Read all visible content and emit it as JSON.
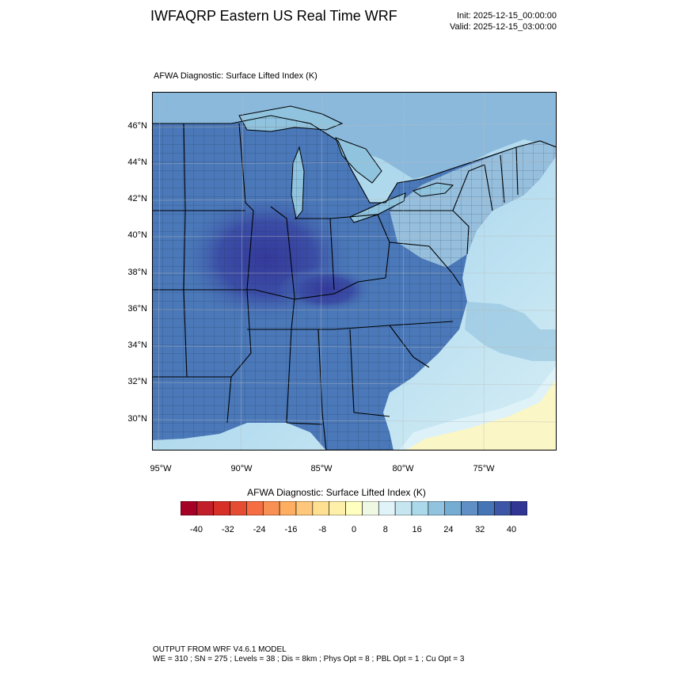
{
  "header": {
    "title": "IWFAQRP Eastern US Real Time WRF",
    "init": "Init: 2025-12-15_00:00:00",
    "valid": "Valid: 2025-12-15_03:00:00"
  },
  "plot": {
    "label": "AFWA Diagnostic: Surface Lifted Index   (K)",
    "lat_labels": [
      "46°N",
      "44°N",
      "42°N",
      "40°N",
      "38°N",
      "36°N",
      "34°N",
      "32°N",
      "30°N"
    ],
    "lon_labels": [
      "95°W",
      "90°W",
      "85°W",
      "80°W",
      "75°W"
    ]
  },
  "colorbar": {
    "title": "AFWA Diagnostic: Surface Lifted Index  (K)",
    "tick_labels": [
      "-40",
      "-32",
      "-24",
      "-16",
      "-8",
      "0",
      "8",
      "16",
      "24",
      "32",
      "40"
    ],
    "colors": [
      "#a50026",
      "#c11f2a",
      "#d73027",
      "#e54d33",
      "#f46d43",
      "#f88f53",
      "#fdae61",
      "#fec77b",
      "#fee090",
      "#fef0a8",
      "#ffffbf",
      "#eef8e2",
      "#e0f3f8",
      "#c5e6f0",
      "#abd9e9",
      "#91c2de",
      "#74add1",
      "#5f8fc5",
      "#4575b4",
      "#3d56a6",
      "#313695"
    ]
  },
  "colors": {
    "land": "#4a78b8",
    "lake": "#8fc3de",
    "ocean": "#a7d4e8"
  },
  "footer": {
    "line1": "OUTPUT FROM WRF V4.6.1 MODEL",
    "line2": "WE = 310 ; SN = 275 ; Levels = 38 ; Dis = 8km ; Phys Opt = 8 ; PBL Opt = 1 ; Cu Opt = 3"
  }
}
